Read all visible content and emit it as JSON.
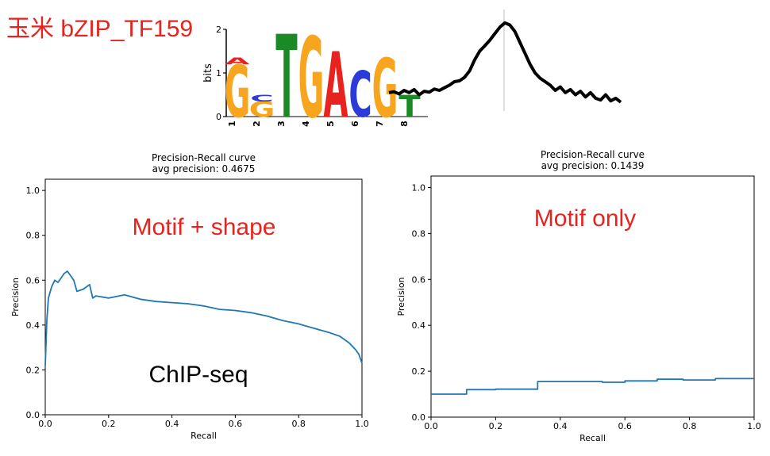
{
  "header": {
    "title": "玉米 bZIP_TF159",
    "title_color": "#e8231f"
  },
  "logo": {
    "ylabel": "bits",
    "yticks": [
      "0",
      "1",
      "2"
    ],
    "positions": [
      "1",
      "2",
      "3",
      "4",
      "5",
      "6",
      "7",
      "8"
    ],
    "letters": [
      {
        "pos": 1,
        "letter": "G",
        "bits": 1.2,
        "color": "#f7a51f"
      },
      {
        "pos": 1,
        "letter": "A",
        "bits": 0.15,
        "color": "#e8231f"
      },
      {
        "pos": 2,
        "letter": "G",
        "bits": 0.35,
        "color": "#f7a51f"
      },
      {
        "pos": 2,
        "letter": "C",
        "bits": 0.15,
        "color": "#2a3bd7"
      },
      {
        "pos": 3,
        "letter": "T",
        "bits": 1.9,
        "color": "#1a8a26"
      },
      {
        "pos": 4,
        "letter": "G",
        "bits": 1.85,
        "color": "#f7a51f"
      },
      {
        "pos": 5,
        "letter": "A",
        "bits": 1.5,
        "color": "#e8231f"
      },
      {
        "pos": 6,
        "letter": "C",
        "bits": 1.05,
        "color": "#2a3bd7"
      },
      {
        "pos": 7,
        "letter": "G",
        "bits": 1.35,
        "color": "#f7a51f"
      },
      {
        "pos": 8,
        "letter": "T",
        "bits": 0.5,
        "color": "#1a8a26"
      }
    ],
    "shape_profile": [
      0.55,
      0.57,
      0.52,
      0.6,
      0.55,
      0.62,
      0.5,
      0.58,
      0.56,
      0.63,
      0.6,
      0.66,
      0.72,
      0.8,
      0.82,
      0.9,
      1.05,
      1.3,
      1.5,
      1.62,
      1.75,
      1.9,
      2.05,
      2.15,
      2.1,
      1.95,
      1.7,
      1.45,
      1.2,
      1.0,
      0.88,
      0.8,
      0.72,
      0.6,
      0.68,
      0.55,
      0.62,
      0.5,
      0.58,
      0.45,
      0.55,
      0.42,
      0.38,
      0.5,
      0.36,
      0.42,
      0.33
    ]
  },
  "chart_data": [
    {
      "type": "line",
      "title": "Precision-Recall curve",
      "subtitle": "avg precision: 0.4675",
      "annotation": "Motif + shape",
      "annotation2": "ChIP-seq",
      "xlabel": "Recall",
      "ylabel": "Precision",
      "xlim": [
        0,
        1
      ],
      "ylim": [
        0,
        1.05
      ],
      "xticks": [
        "0.0",
        "0.2",
        "0.4",
        "0.6",
        "0.8",
        "1.0"
      ],
      "yticks": [
        "0.0",
        "0.2",
        "0.4",
        "0.6",
        "0.8",
        "1.0"
      ],
      "color": "#1f77b4",
      "x": [
        0.0,
        0.005,
        0.01,
        0.02,
        0.03,
        0.04,
        0.05,
        0.06,
        0.07,
        0.08,
        0.09,
        0.1,
        0.12,
        0.14,
        0.15,
        0.16,
        0.2,
        0.25,
        0.3,
        0.35,
        0.4,
        0.45,
        0.5,
        0.55,
        0.6,
        0.65,
        0.7,
        0.75,
        0.8,
        0.85,
        0.9,
        0.93,
        0.96,
        0.98,
        0.99,
        1.0
      ],
      "y": [
        0.22,
        0.42,
        0.52,
        0.57,
        0.6,
        0.59,
        0.61,
        0.63,
        0.64,
        0.62,
        0.6,
        0.55,
        0.56,
        0.58,
        0.52,
        0.53,
        0.52,
        0.535,
        0.515,
        0.505,
        0.5,
        0.495,
        0.485,
        0.47,
        0.465,
        0.455,
        0.44,
        0.42,
        0.405,
        0.385,
        0.365,
        0.35,
        0.32,
        0.29,
        0.27,
        0.23
      ]
    },
    {
      "type": "line",
      "title": "Precision-Recall curve",
      "subtitle": "avg precision: 0.1439",
      "annotation": "Motif only",
      "xlabel": "Recall",
      "ylabel": "Precision",
      "xlim": [
        0,
        1
      ],
      "ylim": [
        0,
        1.05
      ],
      "xticks": [
        "0.0",
        "0.2",
        "0.4",
        "0.6",
        "0.8",
        "1.0"
      ],
      "yticks": [
        "0.0",
        "0.2",
        "0.4",
        "0.6",
        "0.8",
        "1.0"
      ],
      "color": "#1f77b4",
      "x": [
        0.0,
        0.11,
        0.11,
        0.2,
        0.2,
        0.33,
        0.33,
        0.53,
        0.53,
        0.6,
        0.6,
        0.7,
        0.7,
        0.78,
        0.78,
        0.88,
        0.88,
        1.0
      ],
      "y": [
        0.1,
        0.1,
        0.12,
        0.12,
        0.122,
        0.122,
        0.155,
        0.155,
        0.152,
        0.152,
        0.158,
        0.158,
        0.165,
        0.165,
        0.162,
        0.162,
        0.168,
        0.168
      ]
    }
  ]
}
